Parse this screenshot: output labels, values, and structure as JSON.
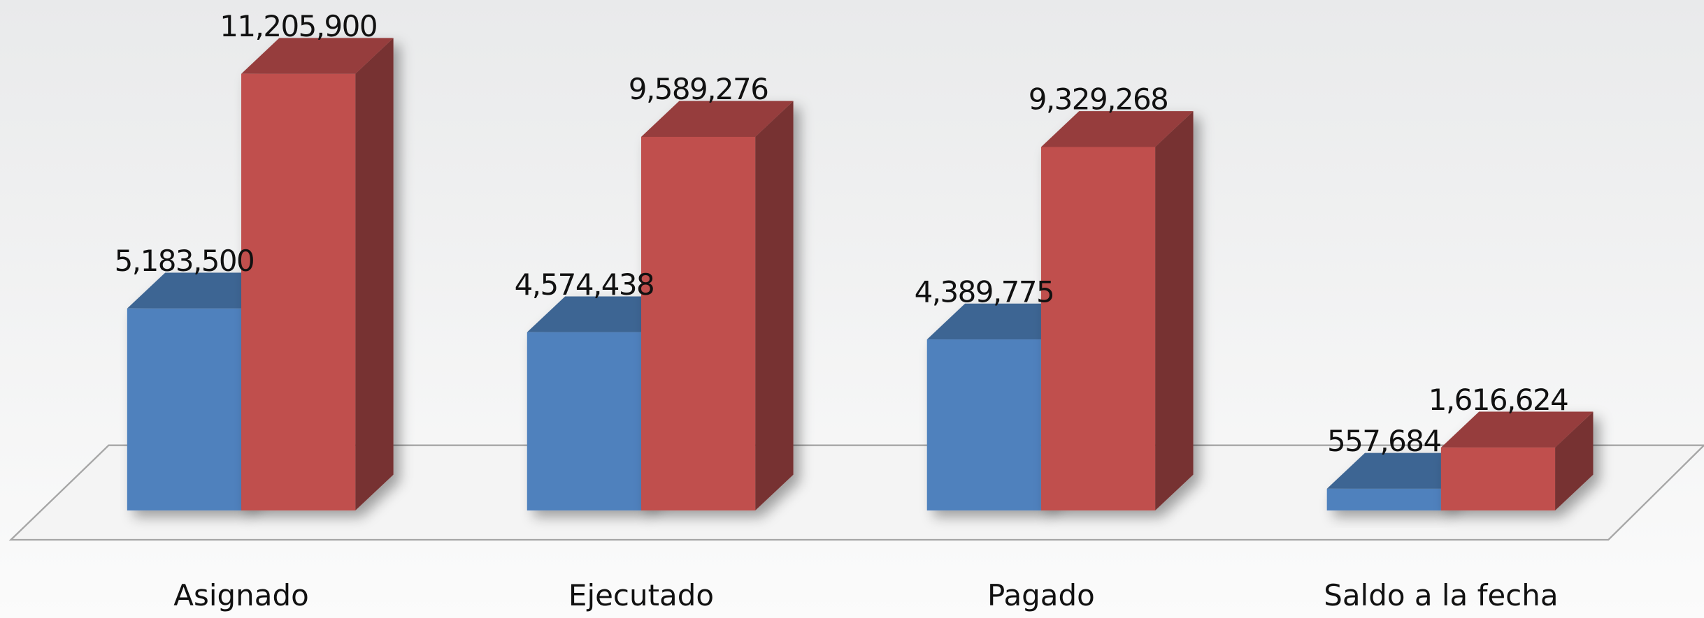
{
  "chart_data": {
    "type": "bar3d",
    "categories": [
      "Asignado",
      "Ejecutado",
      "Pagado",
      "Saldo a la fecha"
    ],
    "series": [
      {
        "color": "#4f81bd",
        "values": [
          5183500,
          4574438,
          4389775,
          557684
        ],
        "value_labels": [
          "5,183,500",
          "4,574,438",
          "4,389,775",
          "557,684"
        ]
      },
      {
        "color": "#c0504d",
        "values": [
          11205900,
          9589276,
          9329268,
          1616624
        ],
        "value_labels": [
          "11,205,900",
          "9,589,276",
          "9,329,268",
          "1,616,624"
        ]
      }
    ],
    "ylim": [
      0,
      12000000
    ]
  }
}
